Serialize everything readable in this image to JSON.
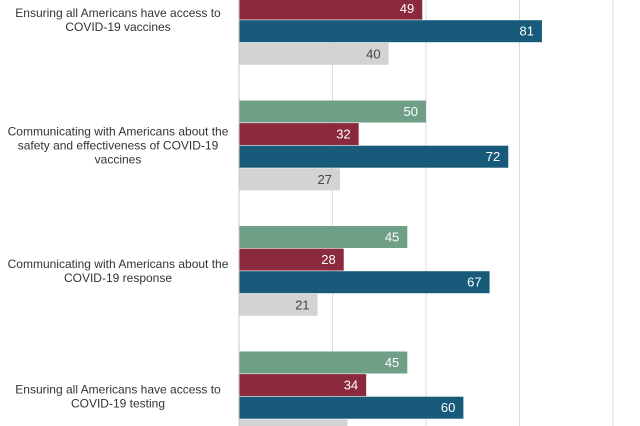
{
  "chart_data": {
    "type": "bar",
    "orientation": "horizontal",
    "categories": [
      "Ensuring all Americans have access to COVID-19 vaccines",
      "Communicating with Americans about the safety and effectiveness of COVID-19 vaccines",
      "Communicating with Americans about the COVID-19 response",
      "Ensuring all Americans have access to COVID-19 testing"
    ],
    "category_lines": [
      [
        "Ensuring all Americans have access to",
        "COVID-19 vaccines"
      ],
      [
        "Communicating with Americans about the",
        "safety and effectiveness of COVID-19",
        "vaccines"
      ],
      [
        "Communicating with Americans about the",
        "COVID-19 response"
      ],
      [
        "Ensuring all Americans have access to",
        "COVID-19 testing"
      ]
    ],
    "series": [
      {
        "values": [
          null,
          50,
          45,
          45
        ],
        "color": "#6f9f86",
        "label_color": "#ffffff"
      },
      {
        "values": [
          49,
          32,
          28,
          34
        ],
        "color": "#8a2a3c",
        "label_color": "#ffffff"
      },
      {
        "values": [
          81,
          72,
          67,
          60
        ],
        "color": "#175a7a",
        "label_color": "#ffffff"
      },
      {
        "values": [
          40,
          27,
          21,
          29
        ],
        "color": "#d3d3d3",
        "label_color": "#444444"
      }
    ],
    "xlim": [
      0,
      100
    ],
    "grid": true,
    "gridlines": [
      0,
      25,
      50,
      75,
      100
    ],
    "cropped": "top and bottom of the chart are cut off in the screenshot"
  }
}
